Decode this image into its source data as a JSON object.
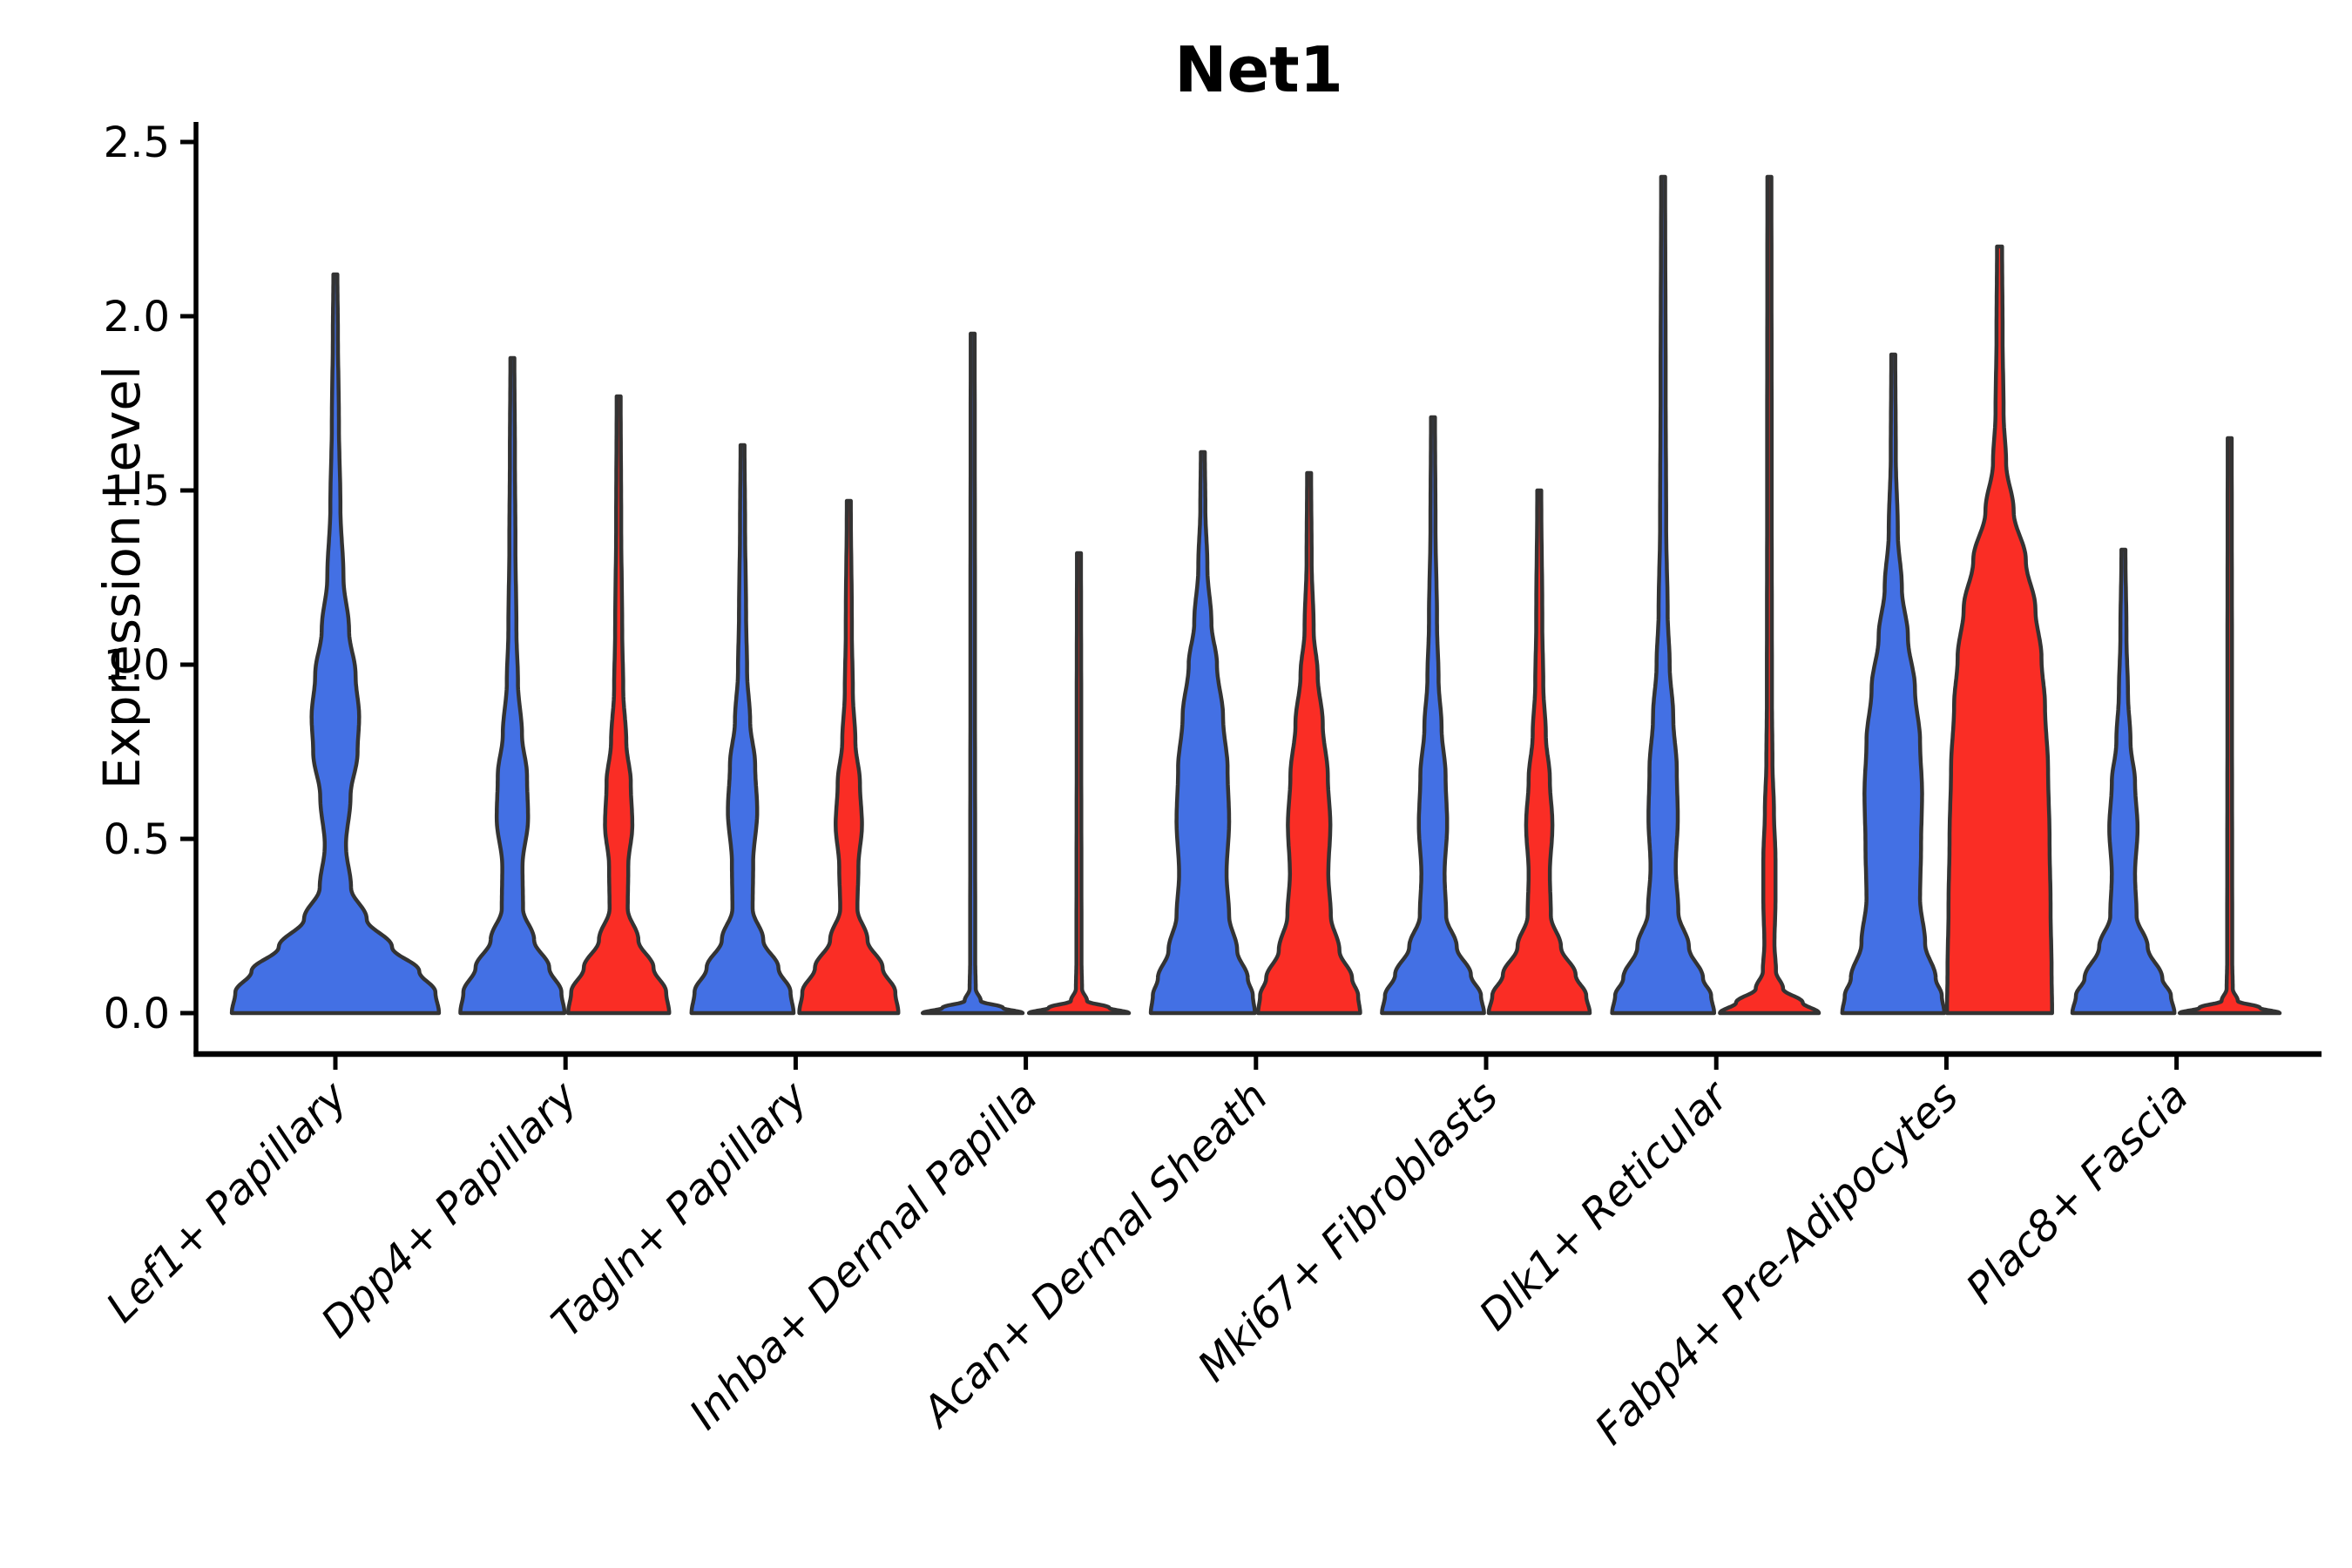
{
  "chart_data": {
    "type": "violin",
    "title": "Net1",
    "xlabel": "",
    "ylabel": "Expression Level",
    "ylim": [
      0,
      2.5
    ],
    "grid": false,
    "legend": "none",
    "outline_color": "#333333",
    "axis_color": "#000000",
    "yticks": [
      {
        "label": "0.0",
        "value": 0.0
      },
      {
        "label": "0.5",
        "value": 0.5
      },
      {
        "label": "1.0",
        "value": 1.0
      },
      {
        "label": "1.5",
        "value": 1.5
      },
      {
        "label": "2.0",
        "value": 2.0
      },
      {
        "label": "2.5",
        "value": 2.5
      }
    ],
    "categories": [
      "Lef1+ Papillary",
      "Dpp4+ Papillary",
      "Tagln+ Papillary",
      "Inhba+ Dermal Papilla",
      "Acan+ Dermal Sheath",
      "Mki67+ Fibroblasts",
      "Dlk1+ Reticular",
      "Fabp4+ Pre-Adipocytes",
      "Plac8+ Fascia"
    ],
    "series": [
      {
        "name": "blue",
        "color": "#4370E4"
      },
      {
        "name": "red",
        "color": "#FA2D25"
      }
    ],
    "violins": [
      {
        "category_index": 0,
        "series": 0,
        "position": "center",
        "max_value": 2.12,
        "profile": [
          [
            0,
            2.05
          ],
          [
            0.06,
            1.98
          ],
          [
            0.12,
            1.66
          ],
          [
            0.19,
            1.12
          ],
          [
            0.27,
            0.62
          ],
          [
            0.36,
            0.31
          ],
          [
            0.48,
            0.21
          ],
          [
            0.62,
            0.3
          ],
          [
            0.75,
            0.44
          ],
          [
            0.85,
            0.47
          ],
          [
            0.97,
            0.4
          ],
          [
            1.1,
            0.27
          ],
          [
            1.25,
            0.16
          ],
          [
            1.45,
            0.1
          ],
          [
            1.7,
            0.07
          ],
          [
            1.95,
            0.05
          ],
          [
            2.12,
            0.04
          ]
        ]
      },
      {
        "category_index": 1,
        "series": 0,
        "position": "left",
        "max_value": 1.88,
        "profile": [
          [
            0,
            1.03
          ],
          [
            0.06,
            0.97
          ],
          [
            0.13,
            0.73
          ],
          [
            0.21,
            0.43
          ],
          [
            0.3,
            0.21
          ],
          [
            0.42,
            0.2
          ],
          [
            0.56,
            0.31
          ],
          [
            0.68,
            0.29
          ],
          [
            0.8,
            0.19
          ],
          [
            0.95,
            0.11
          ],
          [
            1.1,
            0.08
          ],
          [
            1.35,
            0.06
          ],
          [
            1.6,
            0.05
          ],
          [
            1.88,
            0.04
          ]
        ]
      },
      {
        "category_index": 1,
        "series": 1,
        "position": "right",
        "max_value": 1.77,
        "profile": [
          [
            0,
            1.0
          ],
          [
            0.06,
            0.94
          ],
          [
            0.13,
            0.69
          ],
          [
            0.21,
            0.39
          ],
          [
            0.3,
            0.18
          ],
          [
            0.42,
            0.19
          ],
          [
            0.54,
            0.27
          ],
          [
            0.66,
            0.24
          ],
          [
            0.78,
            0.15
          ],
          [
            0.93,
            0.09
          ],
          [
            1.1,
            0.07
          ],
          [
            1.4,
            0.05
          ],
          [
            1.77,
            0.04
          ]
        ]
      },
      {
        "category_index": 2,
        "series": 0,
        "position": "left",
        "max_value": 1.63,
        "profile": [
          [
            0,
            1.01
          ],
          [
            0.06,
            0.95
          ],
          [
            0.13,
            0.71
          ],
          [
            0.21,
            0.41
          ],
          [
            0.3,
            0.2
          ],
          [
            0.43,
            0.21
          ],
          [
            0.58,
            0.29
          ],
          [
            0.71,
            0.25
          ],
          [
            0.84,
            0.15
          ],
          [
            0.98,
            0.09
          ],
          [
            1.15,
            0.07
          ],
          [
            1.4,
            0.05
          ],
          [
            1.63,
            0.04
          ]
        ]
      },
      {
        "category_index": 2,
        "series": 1,
        "position": "right",
        "max_value": 1.47,
        "profile": [
          [
            0,
            0.98
          ],
          [
            0.06,
            0.92
          ],
          [
            0.13,
            0.67
          ],
          [
            0.21,
            0.37
          ],
          [
            0.3,
            0.17
          ],
          [
            0.42,
            0.19
          ],
          [
            0.54,
            0.26
          ],
          [
            0.66,
            0.22
          ],
          [
            0.78,
            0.13
          ],
          [
            0.92,
            0.08
          ],
          [
            1.1,
            0.06
          ],
          [
            1.47,
            0.04
          ]
        ]
      },
      {
        "category_index": 3,
        "series": 0,
        "position": "left",
        "max_value": 1.95,
        "profile": [
          [
            0,
            0.99
          ],
          [
            0.015,
            0.6
          ],
          [
            0.035,
            0.16
          ],
          [
            0.07,
            0.06
          ],
          [
            0.15,
            0.05
          ],
          [
            1.0,
            0.045
          ],
          [
            1.95,
            0.04
          ]
        ]
      },
      {
        "category_index": 3,
        "series": 1,
        "position": "right",
        "max_value": 1.32,
        "profile": [
          [
            0,
            0.99
          ],
          [
            0.015,
            0.6
          ],
          [
            0.035,
            0.16
          ],
          [
            0.07,
            0.06
          ],
          [
            0.15,
            0.05
          ],
          [
            0.8,
            0.045
          ],
          [
            1.32,
            0.04
          ]
        ]
      },
      {
        "category_index": 4,
        "series": 0,
        "position": "left",
        "max_value": 1.61,
        "profile": [
          [
            0,
            1.03
          ],
          [
            0.05,
            0.99
          ],
          [
            0.1,
            0.89
          ],
          [
            0.18,
            0.68
          ],
          [
            0.28,
            0.52
          ],
          [
            0.4,
            0.47
          ],
          [
            0.55,
            0.52
          ],
          [
            0.7,
            0.49
          ],
          [
            0.85,
            0.4
          ],
          [
            1.0,
            0.28
          ],
          [
            1.12,
            0.17
          ],
          [
            1.28,
            0.09
          ],
          [
            1.45,
            0.05
          ],
          [
            1.61,
            0.04
          ]
        ]
      },
      {
        "category_index": 4,
        "series": 1,
        "position": "right",
        "max_value": 1.55,
        "profile": [
          [
            0,
            1.01
          ],
          [
            0.05,
            0.97
          ],
          [
            0.1,
            0.85
          ],
          [
            0.18,
            0.6
          ],
          [
            0.28,
            0.43
          ],
          [
            0.4,
            0.38
          ],
          [
            0.54,
            0.42
          ],
          [
            0.68,
            0.37
          ],
          [
            0.83,
            0.27
          ],
          [
            0.97,
            0.17
          ],
          [
            1.1,
            0.09
          ],
          [
            1.3,
            0.05
          ],
          [
            1.55,
            0.04
          ]
        ]
      },
      {
        "category_index": 5,
        "series": 0,
        "position": "left",
        "max_value": 1.71,
        "profile": [
          [
            0,
            1.01
          ],
          [
            0.05,
            0.95
          ],
          [
            0.11,
            0.75
          ],
          [
            0.19,
            0.47
          ],
          [
            0.28,
            0.26
          ],
          [
            0.4,
            0.23
          ],
          [
            0.54,
            0.28
          ],
          [
            0.68,
            0.25
          ],
          [
            0.82,
            0.17
          ],
          [
            0.96,
            0.11
          ],
          [
            1.12,
            0.08
          ],
          [
            1.4,
            0.05
          ],
          [
            1.71,
            0.04
          ]
        ]
      },
      {
        "category_index": 5,
        "series": 1,
        "position": "right",
        "max_value": 1.5,
        "profile": [
          [
            0,
            1.0
          ],
          [
            0.05,
            0.93
          ],
          [
            0.11,
            0.72
          ],
          [
            0.19,
            0.43
          ],
          [
            0.28,
            0.23
          ],
          [
            0.4,
            0.21
          ],
          [
            0.54,
            0.26
          ],
          [
            0.67,
            0.21
          ],
          [
            0.8,
            0.13
          ],
          [
            0.94,
            0.08
          ],
          [
            1.12,
            0.06
          ],
          [
            1.5,
            0.04
          ]
        ]
      },
      {
        "category_index": 6,
        "series": 0,
        "position": "left",
        "max_value": 2.4,
        "profile": [
          [
            0,
            1.01
          ],
          [
            0.05,
            0.95
          ],
          [
            0.1,
            0.79
          ],
          [
            0.19,
            0.51
          ],
          [
            0.29,
            0.3
          ],
          [
            0.42,
            0.25
          ],
          [
            0.56,
            0.29
          ],
          [
            0.7,
            0.27
          ],
          [
            0.85,
            0.2
          ],
          [
            1.0,
            0.13
          ],
          [
            1.15,
            0.09
          ],
          [
            1.4,
            0.06
          ],
          [
            1.8,
            0.05
          ],
          [
            2.4,
            0.04
          ]
        ]
      },
      {
        "category_index": 6,
        "series": 1,
        "position": "right",
        "max_value": 2.4,
        "profile": [
          [
            0,
            0.98
          ],
          [
            0.03,
            0.66
          ],
          [
            0.07,
            0.27
          ],
          [
            0.12,
            0.13
          ],
          [
            0.2,
            0.1
          ],
          [
            0.32,
            0.12
          ],
          [
            0.44,
            0.12
          ],
          [
            0.58,
            0.09
          ],
          [
            0.72,
            0.06
          ],
          [
            0.9,
            0.05
          ],
          [
            1.5,
            0.045
          ],
          [
            2.4,
            0.04
          ]
        ]
      },
      {
        "category_index": 7,
        "series": 0,
        "position": "left",
        "max_value": 1.89,
        "profile": [
          [
            0,
            1.01
          ],
          [
            0.05,
            0.96
          ],
          [
            0.1,
            0.84
          ],
          [
            0.2,
            0.63
          ],
          [
            0.33,
            0.53
          ],
          [
            0.48,
            0.55
          ],
          [
            0.63,
            0.57
          ],
          [
            0.78,
            0.53
          ],
          [
            0.93,
            0.43
          ],
          [
            1.08,
            0.29
          ],
          [
            1.22,
            0.17
          ],
          [
            1.38,
            0.09
          ],
          [
            1.6,
            0.05
          ],
          [
            1.89,
            0.04
          ]
        ]
      },
      {
        "category_index": 7,
        "series": 1,
        "position": "right",
        "max_value": 2.2,
        "profile": [
          [
            0,
            1.04
          ],
          [
            0.12,
            1.03
          ],
          [
            0.3,
            1.01
          ],
          [
            0.5,
            0.99
          ],
          [
            0.7,
            0.96
          ],
          [
            0.88,
            0.9
          ],
          [
            1.02,
            0.83
          ],
          [
            1.16,
            0.71
          ],
          [
            1.3,
            0.52
          ],
          [
            1.44,
            0.28
          ],
          [
            1.58,
            0.13
          ],
          [
            1.72,
            0.08
          ],
          [
            1.95,
            0.06
          ],
          [
            2.2,
            0.05
          ]
        ]
      },
      {
        "category_index": 8,
        "series": 0,
        "position": "left",
        "max_value": 1.33,
        "profile": [
          [
            0,
            1.01
          ],
          [
            0.05,
            0.94
          ],
          [
            0.1,
            0.77
          ],
          [
            0.19,
            0.48
          ],
          [
            0.28,
            0.26
          ],
          [
            0.4,
            0.23
          ],
          [
            0.53,
            0.28
          ],
          [
            0.66,
            0.23
          ],
          [
            0.78,
            0.14
          ],
          [
            0.92,
            0.09
          ],
          [
            1.08,
            0.06
          ],
          [
            1.33,
            0.04
          ]
        ]
      },
      {
        "category_index": 8,
        "series": 1,
        "position": "right",
        "max_value": 1.65,
        "profile": [
          [
            0,
            0.99
          ],
          [
            0.015,
            0.6
          ],
          [
            0.035,
            0.16
          ],
          [
            0.07,
            0.06
          ],
          [
            0.15,
            0.05
          ],
          [
            0.9,
            0.045
          ],
          [
            1.65,
            0.04
          ]
        ]
      }
    ]
  }
}
